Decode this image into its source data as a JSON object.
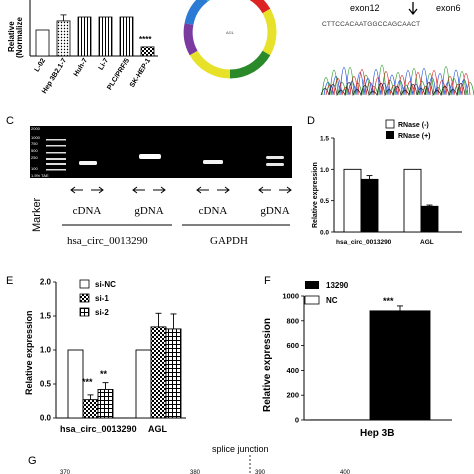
{
  "panel_a": {
    "ylabel_line1": "Relative",
    "ylabel_line2": "(Normalize",
    "categories": [
      "L-02",
      "Hep 3B2.1-7",
      "Huh-7",
      "Li-7",
      "PLC/PRF/5",
      "SK-HEP-1"
    ],
    "significance": "****"
  },
  "panel_b": {
    "ring_label": "AGL"
  },
  "panel_b_seq": {
    "label_left": "exon12",
    "label_right": "exon6"
  },
  "panel_c": {
    "letter": "C",
    "ladder_labels": [
      "2000",
      "1000",
      "750",
      "500",
      "250",
      "100"
    ],
    "gel_caption": "1.5% TAE",
    "marker_label": "Marker",
    "lane_groups": [
      "cDNA",
      "gDNA",
      "cDNA",
      "gDNA"
    ],
    "gene_labels": [
      "hsa_circ_0013290",
      "GAPDH"
    ]
  },
  "panel_d": {
    "letter": "D",
    "legend": [
      "RNase (-)",
      "RNase (+)"
    ],
    "ylabel": "Relative expression",
    "yticks": [
      "0.0",
      "0.5",
      "1.0",
      "1.5"
    ],
    "categories": [
      "hsa_circ_0013290",
      "AGL"
    ]
  },
  "panel_e": {
    "letter": "E",
    "legend": [
      "si-NC",
      "si-1",
      "si-2"
    ],
    "ylabel": "Relative expression",
    "yticks": [
      "0.0",
      "0.5",
      "1.0",
      "1.5",
      "2.0"
    ],
    "categories": [
      "hsa_circ_0013290",
      "AGL"
    ],
    "significance": [
      "***",
      "**"
    ]
  },
  "panel_f": {
    "letter": "F",
    "legend": [
      "13290",
      "NC"
    ],
    "ylabel": "Relative expression",
    "yticks": [
      "0",
      "200",
      "400",
      "600",
      "800",
      "1000"
    ],
    "category": "Hep 3B",
    "significance": "***"
  },
  "panel_g": {
    "letter": "G",
    "title": "splice junction",
    "ticks": [
      "370",
      "380",
      "390",
      "400"
    ]
  },
  "chart_data": [
    {
      "type": "bar",
      "panel": "A",
      "categories": [
        "L-02",
        "Hep 3B2.1-7",
        "Huh-7",
        "Li-7",
        "PLC/PRF/5",
        "SK-HEP-1"
      ],
      "values": [
        1.0,
        1.35,
        1.5,
        1.5,
        1.5,
        0.35
      ],
      "ylabel": "Relative (Normalize"
    },
    {
      "type": "bar",
      "panel": "D",
      "categories": [
        "hsa_circ_0013290",
        "AGL"
      ],
      "series": [
        {
          "name": "RNase (-)",
          "values": [
            1.0,
            1.0
          ]
        },
        {
          "name": "RNase (+)",
          "values": [
            0.84,
            0.41
          ]
        }
      ],
      "errors": [
        [
          0,
          0.06
        ],
        [
          0,
          0.02
        ]
      ],
      "ylabel": "Relative expression",
      "ylim": [
        0,
        1.5
      ]
    },
    {
      "type": "bar",
      "panel": "E",
      "categories": [
        "hsa_circ_0013290",
        "AGL"
      ],
      "series": [
        {
          "name": "si-NC",
          "values": [
            1.0,
            1.0
          ]
        },
        {
          "name": "si-1",
          "values": [
            0.27,
            1.34
          ]
        },
        {
          "name": "si-2",
          "values": [
            0.42,
            1.31
          ]
        }
      ],
      "errors": [
        [
          0,
          0.07,
          0.1
        ],
        [
          0,
          0.2,
          0.22
        ]
      ],
      "ylabel": "Relative expression",
      "ylim": [
        0,
        2.0
      ]
    },
    {
      "type": "bar",
      "panel": "F",
      "categories": [
        "Hep 3B"
      ],
      "series": [
        {
          "name": "13290",
          "values": [
            880
          ]
        },
        {
          "name": "NC",
          "values": [
            1
          ]
        }
      ],
      "errors": [
        [
          40
        ],
        [
          0
        ]
      ],
      "ylabel": "Relative expression",
      "ylim": [
        0,
        1000
      ]
    }
  ]
}
